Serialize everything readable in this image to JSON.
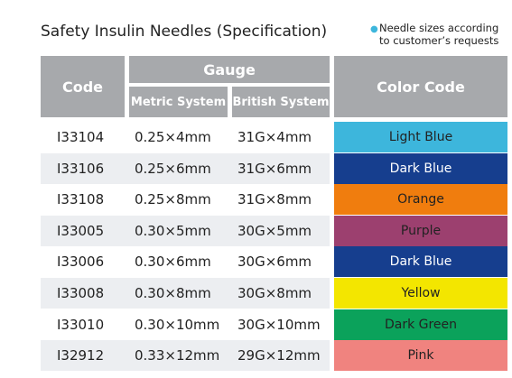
{
  "header": {
    "title": "Safety Insulin Needles (Specification)",
    "note": "Needle sizes according to customer’s requests"
  },
  "table": {
    "columns": {
      "code": "Code",
      "gauge": "Gauge",
      "metric": "Metric System",
      "british": "British System",
      "color": "Color Code"
    },
    "rows": [
      [
        "I33104",
        "0.25×4mm",
        "31G×4mm",
        "Light Blue"
      ],
      [
        "I33106",
        "0.25×6mm",
        "31G×6mm",
        "Dark Blue"
      ],
      [
        "I33108",
        "0.25×8mm",
        "31G×8mm",
        "Orange"
      ],
      [
        "I33005",
        "0.30×5mm",
        "30G×5mm",
        "Purple"
      ],
      [
        "I33006",
        "0.30×6mm",
        "30G×6mm",
        "Dark Blue"
      ],
      [
        "I33008",
        "0.30×8mm",
        "30G×8mm",
        "Yellow"
      ],
      [
        "I33010",
        "0.30×10mm",
        "30G×10mm",
        "Dark Green"
      ],
      [
        "I32912",
        "0.33×12mm",
        "29G×12mm",
        "Pink"
      ]
    ],
    "swatches": [
      "#3db6dc",
      "#163e8e",
      "#f07d0e",
      "#9c406f",
      "#163e8e",
      "#f3e600",
      "#0ba25b",
      "#f0837f"
    ]
  }
}
